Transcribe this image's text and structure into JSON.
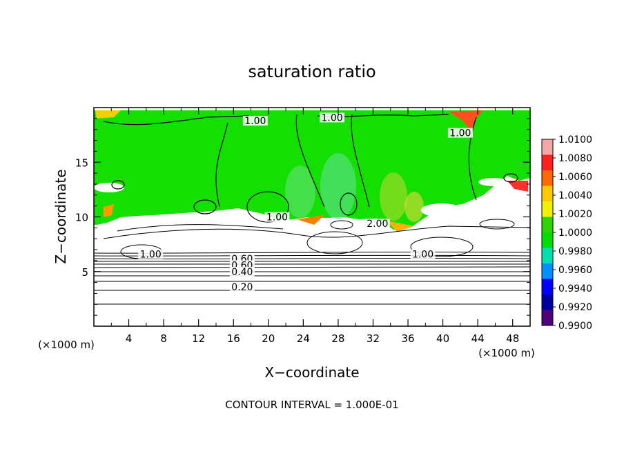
{
  "chart_data": {
    "type": "heatmap",
    "title": "saturation ratio",
    "xlabel": "X−coordinate",
    "ylabel": "Z−coordinate",
    "x_unit_label": "(×1000 m)",
    "z_unit_label": "(×1000 m)",
    "x_ticks": [
      "4",
      "8",
      "12",
      "16",
      "20",
      "24",
      "28",
      "32",
      "36",
      "40",
      "44",
      "48"
    ],
    "z_ticks": [
      "5",
      "10",
      "15"
    ],
    "xlim": [
      0,
      50
    ],
    "zlim": [
      0,
      20
    ],
    "colorbar": {
      "levels": [
        "1.0100",
        "1.0080",
        "1.0060",
        "1.0040",
        "1.0020",
        "1.0000",
        "0.9980",
        "0.9960",
        "0.9940",
        "0.9920",
        "0.9900"
      ],
      "colors": [
        "#f3a6a6",
        "#ff2020",
        "#ff6a00",
        "#ffc800",
        "#f0f000",
        "#2fd400",
        "#00e000",
        "#00e0b0",
        "#0090ff",
        "#0000ff",
        "#0000a0",
        "#50007a"
      ]
    },
    "contour_labels": [
      {
        "text": "1.00",
        "x": 18.5,
        "z": 18.6
      },
      {
        "text": "1.00",
        "x": 27.3,
        "z": 18.9
      },
      {
        "text": "1.00",
        "x": 42.0,
        "z": 17.5
      },
      {
        "text": "1.00",
        "x": 21.0,
        "z": 9.8
      },
      {
        "text": "2.00",
        "x": 32.5,
        "z": 9.2
      },
      {
        "text": "1.00",
        "x": 6.5,
        "z": 6.4
      },
      {
        "text": "1.00",
        "x": 37.7,
        "z": 6.4
      },
      {
        "text": "0.60",
        "x": 17.0,
        "z": 6.0
      },
      {
        "text": "0.60",
        "x": 17.0,
        "z": 5.4
      },
      {
        "text": "0.40",
        "x": 17.0,
        "z": 4.8
      },
      {
        "text": "0.20",
        "x": 17.0,
        "z": 3.4
      }
    ],
    "contour_interval_text": "CONTOUR INTERVAL = 1.000E-01"
  }
}
